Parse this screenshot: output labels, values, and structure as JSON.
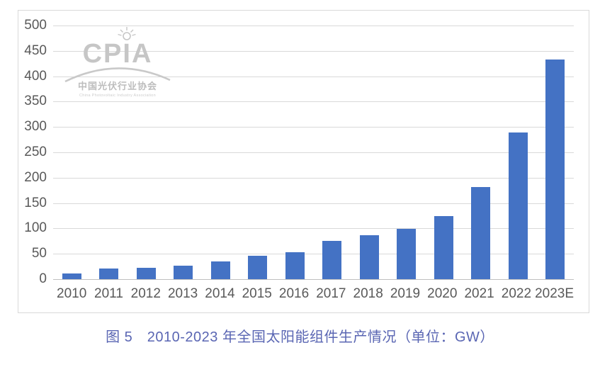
{
  "chart_data": {
    "type": "bar",
    "title": "图 5　2010-2023 年全国太阳能组件生产情况（单位：GW）",
    "categories": [
      "2010",
      "2011",
      "2012",
      "2013",
      "2014",
      "2015",
      "2016",
      "2017",
      "2018",
      "2019",
      "2020",
      "2021",
      "2022",
      "2023E"
    ],
    "values": [
      11,
      21,
      23,
      27,
      35,
      46,
      53,
      76,
      86,
      99,
      125,
      182,
      289,
      433
    ],
    "unit": "GW",
    "xlabel": "",
    "ylabel": "",
    "ylim": [
      0,
      500
    ],
    "ytick_step": 50,
    "grid": true,
    "legend": "none",
    "bar_color": "#4472C4"
  },
  "watermark": {
    "acronym": "CPIA",
    "name_zh": "中国光伏行业协会",
    "name_en": "China Photovoltaic Industry Association",
    "sun_icon": "sunburst-icon"
  },
  "colors": {
    "bar": "#4472C4",
    "gridline": "#D9D9D9",
    "axis_line": "#BFBFBF",
    "tick_text": "#595959",
    "caption_text": "#5A66B3",
    "frame_border": "#D9D9D9",
    "watermark": "#C6C6C6"
  }
}
